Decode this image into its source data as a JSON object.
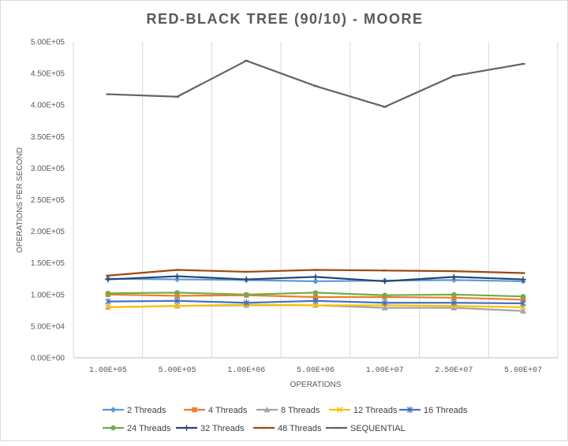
{
  "chart_data": {
    "type": "line",
    "title": "RED-BLACK TREE (90/10) - MOORE",
    "xlabel": "OPERATIONS",
    "ylabel": "OPERATIONS PER SECOND",
    "categories": [
      "1.00E+05",
      "5.00E+05",
      "1.00E+06",
      "5.00E+06",
      "1.00E+07",
      "2.50E+07",
      "5.00E+07"
    ],
    "ylim": [
      0,
      500000
    ],
    "yticks": [
      0,
      50000,
      100000,
      150000,
      200000,
      250000,
      300000,
      350000,
      400000,
      450000,
      500000
    ],
    "ytick_labels": [
      "0.00E+00",
      "5.00E+04",
      "1.00E+05",
      "1.50E+05",
      "2.00E+05",
      "2.50E+05",
      "3.00E+05",
      "3.50E+05",
      "4.00E+05",
      "4.50E+05",
      "5.00E+05"
    ],
    "grid": "vertical",
    "legend_position": "bottom",
    "series": [
      {
        "name": "2 Threads",
        "color": "#5b9bd5",
        "marker": "diamond",
        "values": [
          125000,
          124000,
          123000,
          121000,
          122000,
          123000,
          121000
        ]
      },
      {
        "name": "4 Threads",
        "color": "#ed7d31",
        "marker": "square",
        "values": [
          100000,
          98000,
          99000,
          96000,
          96000,
          95000,
          92000
        ]
      },
      {
        "name": "8 Threads",
        "color": "#a5a5a5",
        "marker": "triangle",
        "values": [
          80000,
          82000,
          83000,
          83000,
          79000,
          79000,
          74000
        ]
      },
      {
        "name": "12 Threads",
        "color": "#ffc000",
        "marker": "x",
        "values": [
          80000,
          82000,
          84000,
          83000,
          83000,
          82000,
          80000
        ]
      },
      {
        "name": "16 Threads",
        "color": "#4472c4",
        "marker": "star",
        "values": [
          89000,
          90000,
          87000,
          90000,
          87000,
          87000,
          86000
        ]
      },
      {
        "name": "24 Threads",
        "color": "#70ad47",
        "marker": "circle",
        "values": [
          102000,
          103000,
          100000,
          103000,
          99000,
          100000,
          97000
        ]
      },
      {
        "name": "32 Threads",
        "color": "#264478",
        "marker": "plus",
        "values": [
          124000,
          129000,
          124000,
          128000,
          121000,
          128000,
          124000
        ]
      },
      {
        "name": "48 Threads",
        "color": "#9e480e",
        "marker": "dash",
        "values": [
          130000,
          139000,
          136000,
          139000,
          138000,
          137000,
          134000
        ]
      },
      {
        "name": "SEQUENTIAL",
        "color": "#636363",
        "marker": "dash",
        "values": [
          417000,
          413000,
          470000,
          430000,
          397000,
          446000,
          465000
        ]
      }
    ]
  }
}
